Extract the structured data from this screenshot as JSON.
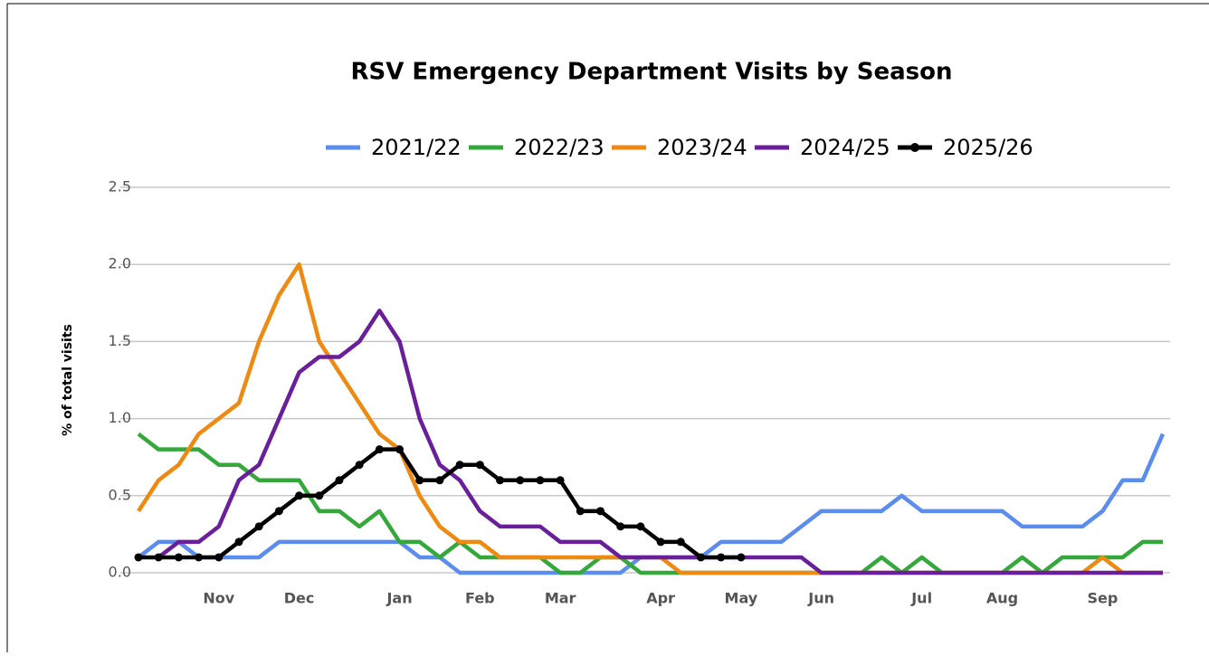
{
  "chart_data": {
    "type": "line",
    "title": "RSV Emergency Department Visits by Season",
    "y_label": "% of total visits",
    "categories": [
      null,
      null,
      null,
      null,
      "Nov",
      null,
      null,
      null,
      "Dec",
      null,
      null,
      null,
      null,
      "Jan",
      null,
      null,
      null,
      "Feb",
      null,
      null,
      null,
      "Mar",
      null,
      null,
      null,
      null,
      "Apr",
      null,
      null,
      null,
      "May",
      null,
      null,
      null,
      "Jun",
      null,
      null,
      null,
      null,
      "Jul",
      null,
      null,
      null,
      "Aug",
      null,
      null,
      null,
      null,
      "Sep",
      null,
      null,
      null
    ],
    "series": [
      {
        "name": "2021/22",
        "color": "#5b8def",
        "values": [
          0.1,
          0.2,
          0.2,
          0.1,
          0.1,
          0.1,
          0.1,
          0.2,
          0.2,
          0.2,
          0.2,
          0.2,
          0.2,
          0.2,
          0.1,
          0.1,
          0,
          0,
          0,
          0,
          0,
          0,
          0,
          0,
          0,
          0.1,
          0.1,
          0.1,
          0.1,
          0.2,
          0.2,
          0.2,
          0.2,
          0.3,
          0.4,
          0.4,
          0.4,
          0.4,
          0.5,
          0.4,
          0.4,
          0.4,
          0.4,
          0.4,
          0.3,
          0.3,
          0.3,
          0.3,
          0.4,
          0.6,
          0.6,
          0.9
        ]
      },
      {
        "name": "2022/23",
        "color": "#35a83c",
        "values": [
          0.9,
          0.8,
          0.8,
          0.8,
          0.7,
          0.7,
          0.6,
          0.6,
          0.6,
          0.4,
          0.4,
          0.3,
          0.4,
          0.2,
          0.2,
          0.1,
          0.2,
          0.1,
          0.1,
          0.1,
          0.1,
          0,
          0,
          0.1,
          0.1,
          0,
          0,
          0,
          0,
          0,
          0,
          0,
          0,
          0,
          0,
          0,
          0,
          0.1,
          0,
          0.1,
          0,
          0,
          0,
          0,
          0.1,
          0,
          0.1,
          0.1,
          0.1,
          0.1,
          0.2,
          0.2
        ]
      },
      {
        "name": "2023/24",
        "color": "#ee8a12",
        "values": [
          0.4,
          0.6,
          0.7,
          0.9,
          1.0,
          1.1,
          1.5,
          1.8,
          2.0,
          1.5,
          1.3,
          1.1,
          0.9,
          0.8,
          0.5,
          0.3,
          0.2,
          0.2,
          0.1,
          0.1,
          0.1,
          0.1,
          0.1,
          0.1,
          0.1,
          0.1,
          0.1,
          0,
          0,
          0,
          0,
          0,
          0,
          0,
          0,
          0,
          0,
          0,
          0,
          0,
          0,
          0,
          0,
          0,
          0,
          0,
          0,
          0,
          0.1,
          0,
          0,
          0
        ]
      },
      {
        "name": "2024/25",
        "color": "#6a1f9a",
        "values": [
          null,
          0.1,
          0.2,
          0.2,
          0.3,
          0.6,
          0.7,
          1.0,
          1.3,
          1.4,
          1.4,
          1.5,
          1.7,
          1.5,
          1.0,
          0.7,
          0.6,
          0.4,
          0.3,
          0.3,
          0.3,
          0.2,
          0.2,
          0.2,
          0.1,
          0.1,
          0.1,
          0.1,
          0.1,
          0.1,
          0.1,
          0.1,
          0.1,
          0.1,
          0,
          0,
          0,
          0,
          0,
          0,
          0,
          0,
          0,
          0,
          0,
          0,
          0,
          0,
          0,
          0,
          0,
          0
        ]
      },
      {
        "name": "2025/26",
        "color": "#000000",
        "markers": true,
        "values": [
          0.1,
          0.1,
          0.1,
          0.1,
          0.1,
          0.2,
          0.3,
          0.4,
          0.5,
          0.5,
          0.6,
          0.7,
          0.8,
          0.8,
          0.6,
          0.6,
          0.7,
          0.7,
          0.6,
          0.6,
          0.6,
          0.6,
          0.4,
          0.4,
          0.3,
          0.3,
          0.2,
          0.2,
          0.1,
          0.1,
          0.1,
          null,
          null,
          null,
          null,
          null,
          null,
          null,
          null,
          null,
          null,
          null,
          null,
          null,
          null,
          null,
          null,
          null,
          null,
          null,
          null,
          null
        ]
      }
    ],
    "ylim": [
      0,
      2.5
    ],
    "yticks": [
      {
        "value": 0,
        "label": "0.0"
      },
      0.5,
      {
        "value": 1,
        "label": "1.0"
      },
      1.5,
      {
        "value": 2,
        "label": "2.0"
      },
      2.5
    ],
    "grid": true,
    "legend": "top"
  }
}
